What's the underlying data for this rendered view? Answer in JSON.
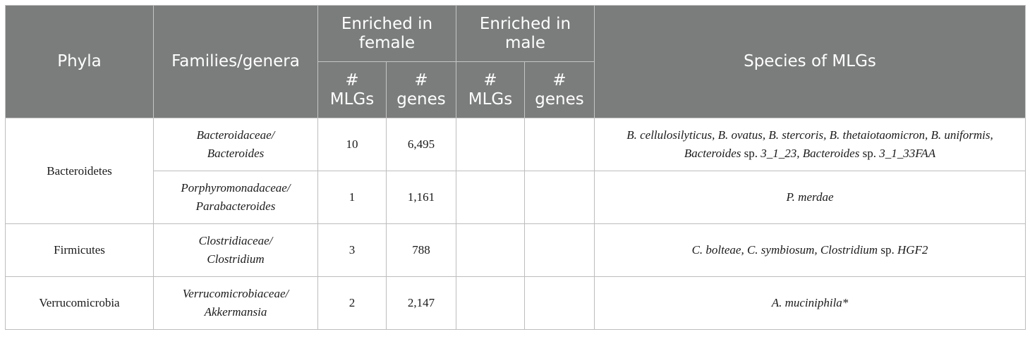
{
  "header": {
    "phyla": "Phyla",
    "families": "Families/genera",
    "enriched_female": "Enriched in female",
    "enriched_male": "Enriched in male",
    "species": "Species of MLGs",
    "mlgs": "# MLGs",
    "genes": "# genes"
  },
  "rows": [
    {
      "phylum": "Bacteroidetes",
      "family": "Bacteroidaceae/",
      "genus": "Bacteroides",
      "female_mlgs": "10",
      "female_genes": "6,495",
      "male_mlgs": "",
      "male_genes": "",
      "species": {
        "s1": "B. cellulosilyticus, B. ovatus, B. stercoris, B. thetaiotaomicron, B. uniformis, Bacteroides",
        "s2": " sp. ",
        "s3": "3_1_23, Bacteroides",
        "s4": " sp. ",
        "s5": "3_1_33FAA"
      }
    },
    {
      "phylum": "",
      "family": "Porphyromonadaceae/",
      "genus": "Parabacteroides",
      "female_mlgs": "1",
      "female_genes": "1,161",
      "male_mlgs": "",
      "male_genes": "",
      "species": {
        "s1": "P. merdae"
      }
    },
    {
      "phylum": "Firmicutes",
      "family": "Clostridiaceae/",
      "genus": "Clostridium",
      "female_mlgs": "3",
      "female_genes": "788",
      "male_mlgs": "",
      "male_genes": "",
      "species": {
        "s1": "C. bolteae, C. symbiosum, Clostridium",
        "s2": " sp. ",
        "s3": "HGF2"
      }
    },
    {
      "phylum": "Verrucomicrobia",
      "family": "Verrucomicrobiaceae/",
      "genus": "Akkermansia",
      "female_mlgs": "2",
      "female_genes": "2,147",
      "male_mlgs": "",
      "male_genes": "",
      "species": {
        "s1": "A. muciniphila*"
      }
    }
  ]
}
